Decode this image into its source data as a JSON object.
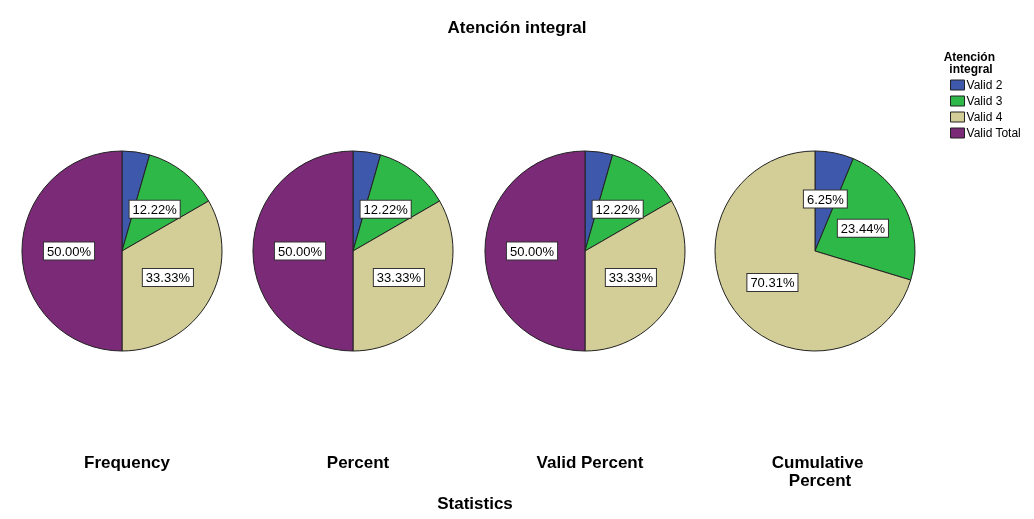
{
  "chart_data": {
    "type": "pie",
    "title": "Atención integral",
    "xlabel": "Statistics",
    "legend": "top right",
    "legend_title": "Atención integral",
    "categories": [
      "Valid 2",
      "Valid 3",
      "Valid 4",
      "Valid Total"
    ],
    "colors": [
      "#3e58ac",
      "#2eb848",
      "#d3ce97",
      "#7b2a78"
    ],
    "series": [
      {
        "name": "Frequency",
        "values": [
          4.45,
          12.22,
          33.33,
          50.0
        ],
        "value_labels": [
          null,
          "12.22%",
          "33.33%",
          "50.00%"
        ]
      },
      {
        "name": "Percent",
        "values": [
          4.45,
          12.22,
          33.33,
          50.0
        ],
        "value_labels": [
          null,
          "12.22%",
          "33.33%",
          "50.00%"
        ]
      },
      {
        "name": "Valid Percent",
        "values": [
          4.45,
          12.22,
          33.33,
          50.0
        ],
        "value_labels": [
          null,
          "12.22%",
          "33.33%",
          "50.00%"
        ]
      },
      {
        "name": "Cumulative Percent",
        "values": [
          6.25,
          23.44,
          70.31,
          null
        ],
        "value_labels": [
          "6.25%",
          "23.44%",
          "70.31%",
          null
        ]
      }
    ]
  }
}
